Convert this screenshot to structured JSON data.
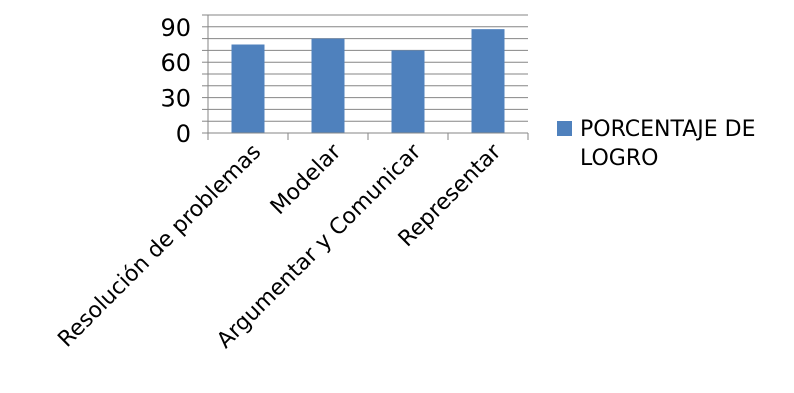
{
  "chart_data": {
    "type": "bar",
    "categories": [
      "Resolución de problemas",
      "Modelar",
      "Argumentar y Comunicar",
      "Representar"
    ],
    "series": [
      {
        "name": "PORCENTAJE DE LOGRO",
        "values": [
          75,
          80,
          70,
          88
        ],
        "color": "#4F81BD"
      }
    ],
    "yticks": [
      "0",
      "30",
      "60",
      "90"
    ],
    "ylim": [
      0,
      100
    ],
    "grid": true,
    "legend_position": "right",
    "legend_lines": [
      "PORCENTAJE DE",
      "LOGRO"
    ]
  }
}
